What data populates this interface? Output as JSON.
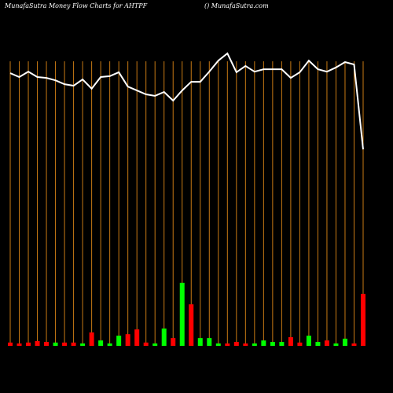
{
  "chart_data": {
    "type": "line",
    "title": "MunafaSutra  Money Flow  Charts for AHTPF",
    "subtitle": "() MunafaSutra.com",
    "categories": [
      null,
      null,
      null,
      null,
      null,
      null,
      null,
      null,
      null,
      null,
      null,
      null,
      null,
      null,
      null,
      null,
      null,
      null,
      null,
      null,
      null,
      null,
      null,
      null,
      null,
      null,
      null,
      null,
      null,
      null,
      null,
      null,
      null,
      null,
      null,
      null,
      null,
      null,
      null,
      null
    ],
    "ylim": [
      0,
      100
    ],
    "grid_color": "#c87a14",
    "series": [
      {
        "color": "#ffffff",
        "values": [
          91.3,
          90,
          91.8,
          90,
          89.7,
          88.9,
          87.6,
          87.1,
          89.2,
          86.1,
          90,
          90.3,
          91.6,
          86.8,
          85.5,
          84.2,
          83.7,
          85,
          82.1,
          85.5,
          88.4,
          88.4,
          91.8,
          95.5,
          97.9,
          91.6,
          93.7,
          91.8,
          92.6,
          92.6,
          92.6,
          89.7,
          91.6,
          95.5,
          92.6,
          91.8,
          93.2,
          95,
          94.2,
          65.8
        ]
      },
      {
        "type": "bar",
        "values": [
          1.1,
          0.8,
          1.1,
          1.6,
          1.3,
          1.1,
          1.1,
          1.1,
          0.8,
          4.5,
          1.8,
          0.8,
          3.4,
          3.9,
          5.5,
          1.1,
          0.8,
          5.8,
          2.6,
          21.1,
          13.9,
          2.6,
          2.6,
          0.8,
          0.8,
          1.3,
          0.8,
          0.8,
          1.8,
          1.3,
          1.3,
          2.9,
          1.1,
          3.4,
          1.3,
          1.8,
          0.8,
          2.4,
          0.8,
          17.4
        ],
        "colors": [
          "#f00",
          "#f00",
          "#f00",
          "#f00",
          "#f00",
          "#0f0",
          "#f00",
          "#f00",
          "#0f0",
          "#f00",
          "#0f0",
          "#0f0",
          "#0f0",
          "#f00",
          "#f00",
          "#f00",
          "#0f0",
          "#0f0",
          "#f00",
          "#0f0",
          "#f00",
          "#0f0",
          "#0f0",
          "#0f0",
          "#f00",
          "#f00",
          "#f00",
          "#0f0",
          "#0f0",
          "#0f0",
          "#0f0",
          "#f00",
          "#f00",
          "#0f0",
          "#0f0",
          "#f00",
          "#0f0",
          "#0f0",
          "#f00",
          "#f00"
        ]
      }
    ]
  }
}
